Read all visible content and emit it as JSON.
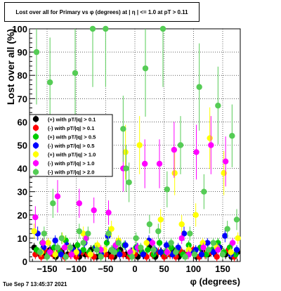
{
  "chart_data": {
    "type": "scatter",
    "title": "Lost over all for Primary vs φ (degrees) at | η | <= 1.0 at pT > 0.11",
    "xlabel": "φ (degrees)",
    "ylabel": "Lost over all (%)",
    "xlim": [
      -180,
      180
    ],
    "ylim": [
      0,
      100
    ],
    "xticks": [
      -150,
      -100,
      -50,
      0,
      50,
      100,
      150
    ],
    "xtick_labels": [
      "−150",
      "−100",
      "−50",
      "0",
      "50",
      "100",
      "150"
    ],
    "yticks": [
      0,
      10,
      20,
      30,
      40,
      50,
      60,
      70,
      80,
      90,
      100
    ],
    "grid": true,
    "legend_position": "left-middle",
    "series": [
      {
        "name": "(+) with pT/|q| > 0.1",
        "color": "#000000",
        "x": [
          -172,
          -165,
          -155,
          -145,
          -135,
          -125,
          -115,
          -105,
          -95,
          -85,
          -75,
          -65,
          -55,
          -45,
          -35,
          -25,
          -15,
          -5,
          5,
          15,
          25,
          35,
          45,
          55,
          65,
          75,
          85,
          95,
          105,
          115,
          125,
          135,
          145,
          155,
          165,
          175
        ],
        "y": [
          6,
          4,
          3,
          5,
          2,
          4,
          3,
          6,
          2,
          3,
          5,
          2,
          4,
          3,
          2,
          5,
          3,
          4,
          2,
          3,
          6,
          2,
          4,
          3,
          5,
          2,
          3,
          4,
          2,
          5,
          3,
          4,
          6,
          3,
          2,
          4
        ]
      },
      {
        "name": "(-) with pT/|q| > 0.1",
        "color": "#ff0000",
        "x": [
          -170,
          -160,
          -150,
          -140,
          -130,
          -120,
          -110,
          -100,
          -90,
          -80,
          -70,
          -60,
          -50,
          -40,
          -30,
          -20,
          -10,
          0,
          10,
          20,
          30,
          40,
          50,
          60,
          70,
          80,
          90,
          100,
          110,
          120,
          130,
          140,
          150,
          160,
          170
        ],
        "y": [
          3,
          2,
          4,
          3,
          5,
          2,
          3,
          2,
          4,
          3,
          2,
          5,
          3,
          2,
          4,
          3,
          2,
          3,
          5,
          2,
          3,
          4,
          2,
          3,
          2,
          4,
          3,
          5,
          2,
          3,
          4,
          2,
          3,
          5,
          2
        ]
      },
      {
        "name": "(+) with pT/|q| > 0.5",
        "color": "#00cc00",
        "x": [
          -168,
          -158,
          -148,
          -138,
          -128,
          -118,
          -108,
          -98,
          -88,
          -78,
          -68,
          -58,
          -48,
          -38,
          -28,
          -18,
          -8,
          2,
          12,
          22,
          32,
          42,
          52,
          62,
          72,
          82,
          92,
          102,
          112,
          122,
          132,
          142,
          152,
          162,
          172
        ],
        "y": [
          5,
          8,
          3,
          6,
          4,
          9,
          3,
          7,
          5,
          4,
          6,
          3,
          8,
          5,
          4,
          7,
          3,
          6,
          4,
          5,
          3,
          8,
          4,
          6,
          5,
          3,
          7,
          4,
          6,
          3,
          5,
          8,
          4,
          6,
          3
        ]
      },
      {
        "name": "(-) with pT/|q| > 0.5",
        "color": "#0000ff",
        "x": [
          -166,
          -156,
          -146,
          -136,
          -126,
          -116,
          -106,
          -96,
          -86,
          -76,
          -66,
          -56,
          -46,
          -36,
          -26,
          -16,
          -6,
          4,
          14,
          24,
          34,
          44,
          54,
          64,
          74,
          84,
          94,
          104,
          114,
          124,
          134,
          144,
          154,
          164,
          174
        ],
        "y": [
          12,
          6,
          4,
          9,
          3,
          7,
          5,
          4,
          8,
          3,
          6,
          4,
          11,
          5,
          3,
          7,
          4,
          6,
          3,
          9,
          5,
          4,
          7,
          3,
          6,
          12,
          4,
          5,
          3,
          8,
          4,
          6,
          11,
          3,
          5
        ]
      },
      {
        "name": "(+) with pT/|q| > 1.0",
        "color": "#ffff00",
        "x": [
          -172,
          -160,
          -148,
          -136,
          -124,
          -112,
          -100,
          -88,
          -76,
          -64,
          -52,
          -40,
          -28,
          -16,
          -4,
          8,
          20,
          32,
          44,
          56,
          68,
          80,
          92,
          104,
          116,
          128,
          140,
          152,
          164,
          176
        ],
        "y": [
          13,
          4,
          8,
          3,
          10,
          6,
          4,
          12,
          3,
          7,
          5,
          14,
          9,
          47,
          4,
          50,
          8,
          5,
          18,
          4,
          38,
          16,
          5,
          20,
          8,
          53,
          6,
          38,
          4,
          10
        ]
      },
      {
        "name": "(-) with pT/|q| > 1.0",
        "color": "#ff00ff",
        "x": [
          -170,
          -157,
          -145,
          -132,
          -120,
          -108,
          -95,
          -83,
          -70,
          -58,
          -45,
          -33,
          -20,
          -8,
          5,
          17,
          30,
          42,
          55,
          67,
          80,
          92,
          105,
          117,
          130,
          142,
          155,
          167
        ],
        "y": [
          19,
          8,
          4,
          28,
          6,
          3,
          25,
          10,
          22,
          5,
          21,
          7,
          40,
          4,
          6,
          42,
          8,
          42,
          4,
          48,
          10,
          3,
          47,
          6,
          50,
          5,
          43,
          8
        ]
      },
      {
        "name": "(-) with pT/|q| > 2.0",
        "color": "#55cc55",
        "x": [
          -168,
          -162,
          -155,
          -150,
          -145,
          -140,
          -132,
          -125,
          -118,
          -110,
          -102,
          -95,
          -88,
          -80,
          -72,
          -65,
          -58,
          -50,
          -45,
          -40,
          -35,
          -28,
          -20,
          -15,
          -10,
          -5,
          2,
          10,
          18,
          25,
          32,
          40,
          48,
          55,
          62,
          70,
          78,
          86,
          94,
          102,
          110,
          118,
          126,
          134,
          142,
          150,
          158,
          166,
          174
        ],
        "y": [
          90,
          4,
          12,
          2,
          77,
          25,
          6,
          10,
          2,
          6,
          81,
          13,
          8,
          12,
          100,
          5,
          2,
          100,
          12,
          5,
          4,
          8,
          57,
          40,
          34,
          2,
          10,
          6,
          83,
          16,
          5,
          13,
          100,
          31,
          8,
          4,
          50,
          2,
          12,
          3,
          75,
          30,
          5,
          8,
          67,
          3,
          14,
          54,
          18
        ]
      }
    ]
  },
  "timestamp": "Tue Sep  7 13:45:37 2021"
}
